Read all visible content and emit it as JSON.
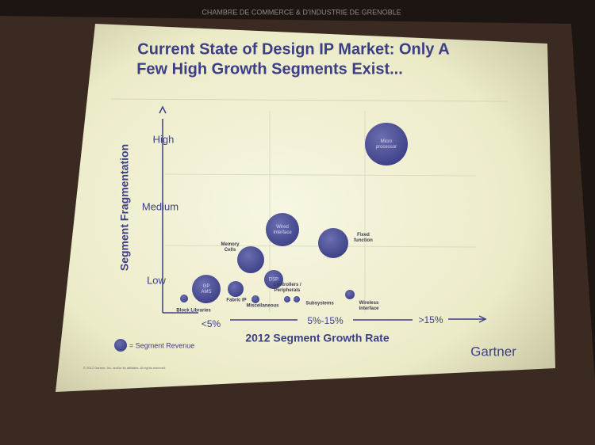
{
  "header": "CHAMBRE DE COMMERCE & D'INDUSTRIE DE GRENOBLE",
  "slide": {
    "title": [
      "Current State of Design IP Market: Only A",
      "Few High Growth Segments Exist..."
    ],
    "y_axis": {
      "label": "Segment Fragmentation",
      "levels": [
        "High",
        "Medium",
        "Low"
      ]
    },
    "x_axis": {
      "label": "2012 Segment Growth Rate",
      "levels": [
        "<5%",
        "5%-15%",
        ">15%"
      ]
    },
    "bubbles": [
      {
        "label": [
          "Micro",
          "processor"
        ]
      },
      {
        "label": [
          "Wired",
          "Interface"
        ]
      },
      {
        "label": [
          "Fixed",
          "function"
        ]
      },
      {
        "label": [
          "Memory",
          "Cells"
        ]
      },
      {
        "label": [
          "DSP"
        ]
      },
      {
        "label": [
          "GP",
          "AMS"
        ]
      },
      {
        "label": [
          "Fabric IP"
        ]
      },
      {
        "label": [
          "Block Libraries"
        ]
      },
      {
        "label": [
          "Miscellaneous"
        ]
      },
      {
        "label": [
          "Controllers /",
          "Peripherals"
        ]
      },
      {
        "label": [
          "Subsystems"
        ]
      },
      {
        "label": [
          "Wireless",
          "Interface"
        ]
      }
    ],
    "legend": "= Segment Revenue",
    "logo": "Gartner",
    "copyright": "© 2012 Gartner, Inc. and/or its affiliates. All rights reserved."
  }
}
